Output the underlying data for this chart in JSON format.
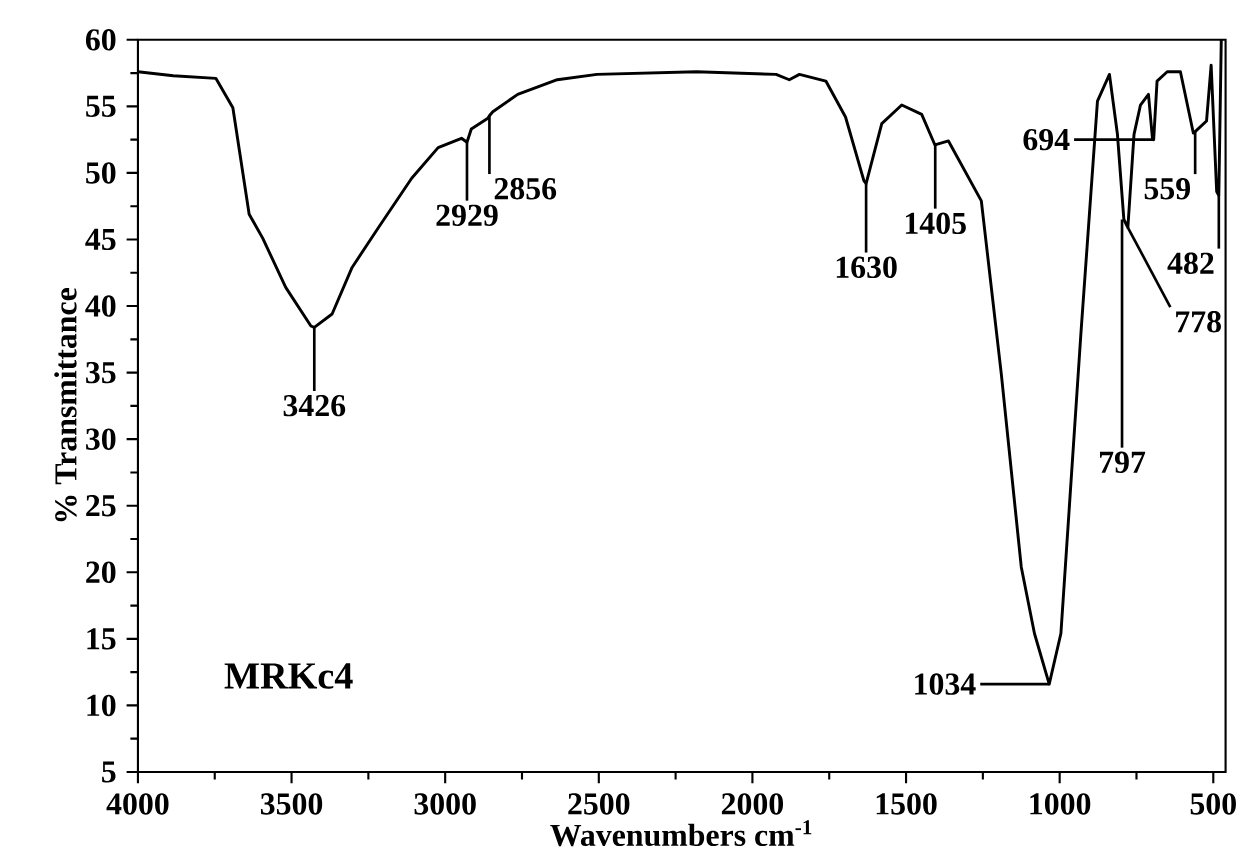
{
  "chart_data": {
    "type": "line",
    "xlabel": "Wavenumbers cm$^{-1}$",
    "ylabel": "% Transmittance",
    "xlim": [
      4000,
      460
    ],
    "ylim": [
      5,
      60
    ],
    "xticks": [
      4000,
      3500,
      3000,
      2500,
      2000,
      1500,
      1000,
      500
    ],
    "yticks": [
      5,
      10,
      15,
      20,
      25,
      30,
      35,
      40,
      45,
      50,
      55,
      60
    ],
    "grid": false,
    "marker": "none",
    "line_style": "solid",
    "series": [
      {
        "color": "#000000",
        "x": [
          4000,
          3885,
          3746,
          3691,
          3638,
          3594,
          3519,
          3437,
          3426,
          3368,
          3303,
          3217,
          3109,
          3023,
          2947,
          2929,
          2915,
          2861,
          2856,
          2845,
          2764,
          2635,
          2506,
          2182,
          1923,
          1880,
          1847,
          1761,
          1697,
          1637,
          1630,
          1579,
          1514,
          1449,
          1406,
          1362,
          1255,
          1190,
          1125,
          1082,
          1034,
          996,
          931,
          877,
          838,
          812,
          791,
          778,
          758,
          737,
          711,
          698,
          694,
          683,
          650,
          607,
          565,
          559,
          522,
          507,
          489,
          482,
          474
        ],
        "values": [
          57.6,
          57.3,
          57.1,
          54.9,
          46.9,
          45.1,
          41.4,
          38.5,
          38.4,
          39.4,
          42.9,
          45.9,
          49.6,
          51.9,
          52.6,
          52.3,
          53.3,
          54.1,
          54.3,
          54.6,
          55.9,
          57.0,
          57.4,
          57.6,
          57.4,
          57.0,
          57.4,
          56.9,
          54.2,
          49.4,
          49.2,
          53.7,
          55.1,
          54.4,
          52.1,
          52.4,
          47.9,
          34.9,
          20.4,
          15.4,
          11.6,
          15.4,
          37.9,
          55.4,
          57.4,
          52.9,
          46.5,
          45.9,
          52.9,
          55.1,
          55.9,
          52.6,
          52.5,
          56.9,
          57.6,
          57.6,
          53.0,
          53.1,
          53.9,
          58.1,
          48.6,
          48.3,
          60
        ]
      }
    ],
    "annotations": [
      "MRKc4",
      {
        "text": "3426",
        "x": 3426,
        "y": 38.4
      },
      {
        "text": "2929",
        "x": 2929,
        "y": 52.3
      },
      {
        "text": "2856",
        "x": 2856,
        "y": 54.3
      },
      {
        "text": "1630",
        "x": 1630,
        "y": 49.2
      },
      {
        "text": "1405",
        "x": 1405,
        "y": 52.1
      },
      {
        "text": "1034",
        "x": 1034,
        "y": 11.6
      },
      {
        "text": "797",
        "x": 797,
        "y": 46.5
      },
      {
        "text": "778",
        "x": 778,
        "y": 45.9
      },
      {
        "text": "694",
        "x": 694,
        "y": 52.5
      },
      {
        "text": "559",
        "x": 559,
        "y": 53.1
      },
      {
        "text": "482",
        "x": 482,
        "y": 48.3
      }
    ]
  }
}
